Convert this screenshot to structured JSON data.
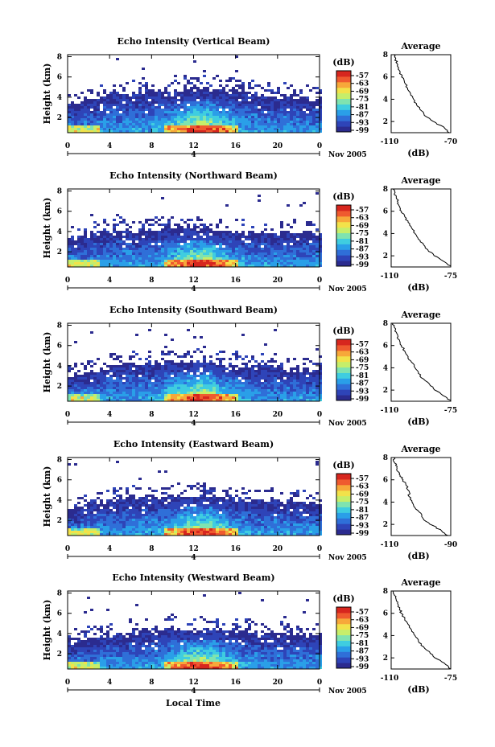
{
  "figure": {
    "xlabel": "Local Time",
    "colorbar_unit": "(dB)",
    "colorbar_ticks": [
      "-57",
      "-63",
      "-69",
      "-75",
      "-81",
      "-87",
      "-93",
      "-99"
    ],
    "date_label": "Nov 2005",
    "day_label": "4",
    "avg_title": "Average",
    "avg_xlabel": "(dB)",
    "colormap": [
      "#2b2b8f",
      "#2e44b8",
      "#2f6fd8",
      "#2a9fe8",
      "#3fcde0",
      "#7fe3b0",
      "#c6ee6a",
      "#f2e24a",
      "#f7a83a",
      "#ef5a2f",
      "#d7261e"
    ]
  },
  "chart_data": [
    {
      "type": "heatmap",
      "title": "Echo Intensity (Vertical Beam)",
      "ylabel": "Height (km)",
      "x_ticks": [
        "0",
        "4",
        "8",
        "12",
        "16",
        "20",
        "0"
      ],
      "y_ticks": [
        "2",
        "4",
        "6",
        "8"
      ],
      "xlim": [
        0,
        24
      ],
      "ylim": [
        0.5,
        8.2
      ],
      "echo_top_km": [
        3.3,
        3.4,
        3.6,
        4.2,
        4.6,
        4.5,
        4.4,
        4.5,
        4.6,
        4.7,
        4.7,
        4.8,
        4.9,
        4.8,
        4.7,
        4.6,
        4.5,
        4.4,
        4.2,
        4.1,
        4.0,
        3.9,
        3.9,
        3.8,
        3.7
      ],
      "profile": {
        "type": "line",
        "xlim": [
          -110,
          -70
        ],
        "x_ticks": [
          "-110",
          "-70"
        ],
        "ylim": [
          1,
          8
        ],
        "y_ticks": [
          "2",
          "4",
          "6",
          "8"
        ],
        "x": [
          -71,
          -74,
          -80,
          -86,
          -90,
          -93,
          -95,
          -97,
          -99,
          -101,
          -103,
          -104,
          -105,
          -106,
          -107,
          -108
        ],
        "y": [
          1.0,
          1.4,
          1.9,
          2.4,
          3.0,
          3.5,
          4.0,
          4.5,
          5.0,
          5.5,
          6.0,
          6.4,
          6.8,
          7.2,
          7.6,
          8.0
        ]
      }
    },
    {
      "type": "heatmap",
      "title": "Echo Intensity (Northward Beam)",
      "ylabel": "Height (km)",
      "x_ticks": [
        "0",
        "4",
        "8",
        "12",
        "16",
        "20",
        "0"
      ],
      "y_ticks": [
        "2",
        "4",
        "6",
        "8"
      ],
      "xlim": [
        0,
        24
      ],
      "ylim": [
        0.5,
        8.2
      ],
      "echo_top_km": [
        3.2,
        3.4,
        3.6,
        3.9,
        4.1,
        4.0,
        3.9,
        4.1,
        4.3,
        4.2,
        4.1,
        4.0,
        4.2,
        4.1,
        4.0,
        3.9,
        3.9,
        3.8,
        3.8,
        3.8,
        3.9,
        3.8,
        3.8,
        3.9,
        3.8
      ],
      "profile": {
        "type": "line",
        "xlim": [
          -110,
          -75
        ],
        "x_ticks": [
          "-110",
          "-75"
        ],
        "ylim": [
          1,
          8
        ],
        "y_ticks": [
          "2",
          "4",
          "6",
          "8"
        ],
        "x": [
          -75,
          -78,
          -83,
          -88,
          -91,
          -94,
          -96,
          -98,
          -100,
          -102,
          -104,
          -105,
          -106,
          -107,
          -108,
          -109
        ],
        "y": [
          1.0,
          1.4,
          1.9,
          2.4,
          3.0,
          3.5,
          4.0,
          4.5,
          5.0,
          5.5,
          6.0,
          6.4,
          6.8,
          7.2,
          7.6,
          8.0
        ]
      }
    },
    {
      "type": "heatmap",
      "title": "Echo Intensity (Southward Beam)",
      "ylabel": "Height (km)",
      "x_ticks": [
        "0",
        "4",
        "8",
        "12",
        "16",
        "20",
        "0"
      ],
      "y_ticks": [
        "2",
        "4",
        "6",
        "8"
      ],
      "xlim": [
        0,
        24
      ],
      "ylim": [
        0.5,
        8.2
      ],
      "echo_top_km": [
        3.0,
        3.2,
        3.5,
        3.9,
        4.2,
        4.3,
        4.1,
        4.2,
        4.4,
        4.5,
        4.3,
        4.2,
        4.4,
        4.3,
        4.1,
        4.0,
        3.9,
        3.8,
        3.9,
        3.8,
        3.7,
        3.7,
        3.6,
        3.6,
        3.5
      ],
      "profile": {
        "type": "line",
        "xlim": [
          -110,
          -75
        ],
        "x_ticks": [
          "-110",
          "-75"
        ],
        "ylim": [
          1,
          8
        ],
        "y_ticks": [
          "2",
          "4",
          "6",
          "8"
        ],
        "x": [
          -75,
          -78,
          -83,
          -87,
          -91,
          -94,
          -96,
          -98,
          -100,
          -102,
          -104,
          -105,
          -106,
          -107,
          -108,
          -109
        ],
        "y": [
          1.0,
          1.4,
          1.9,
          2.4,
          3.0,
          3.5,
          4.0,
          4.5,
          5.0,
          5.5,
          6.0,
          6.4,
          6.8,
          7.2,
          7.6,
          8.0
        ]
      }
    },
    {
      "type": "heatmap",
      "title": "Echo Intensity (Eastward Beam)",
      "ylabel": "Height (km)",
      "x_ticks": [
        "0",
        "4",
        "8",
        "12",
        "16",
        "20",
        "0"
      ],
      "y_ticks": [
        "2",
        "4",
        "6",
        "8"
      ],
      "xlim": [
        0,
        24
      ],
      "ylim": [
        0.5,
        8.2
      ],
      "echo_top_km": [
        3.0,
        3.2,
        3.5,
        3.8,
        4.0,
        4.1,
        4.2,
        4.3,
        4.4,
        4.4,
        4.3,
        4.3,
        4.4,
        4.3,
        4.2,
        4.1,
        4.0,
        3.9,
        3.9,
        3.9,
        3.8,
        3.8,
        3.7,
        3.7,
        3.7
      ],
      "profile": {
        "type": "line",
        "xlim": [
          -110,
          -90
        ],
        "x_ticks": [
          "-110",
          "-90"
        ],
        "ylim": [
          1,
          8
        ],
        "y_ticks": [
          "2",
          "4",
          "6",
          "8"
        ],
        "x": [
          -91,
          -93,
          -96,
          -99,
          -100,
          -102,
          -103,
          -104,
          -104,
          -105,
          -106,
          -107,
          -108,
          -108,
          -109,
          -109
        ],
        "y": [
          1.0,
          1.4,
          1.9,
          2.4,
          3.0,
          3.5,
          4.0,
          4.5,
          5.0,
          5.5,
          6.0,
          6.4,
          6.8,
          7.2,
          7.6,
          8.0
        ]
      }
    },
    {
      "type": "heatmap",
      "title": "Echo Intensity (Westward Beam)",
      "ylabel": "Height (km)",
      "x_ticks": [
        "0",
        "4",
        "8",
        "12",
        "16",
        "20",
        "0"
      ],
      "y_ticks": [
        "2",
        "4",
        "6",
        "8"
      ],
      "xlim": [
        0,
        24
      ],
      "ylim": [
        0.5,
        8.2
      ],
      "echo_top_km": [
        3.1,
        3.3,
        3.5,
        3.7,
        3.9,
        4.0,
        4.1,
        4.3,
        4.4,
        4.5,
        4.4,
        4.3,
        4.4,
        4.4,
        4.3,
        4.2,
        4.1,
        4.0,
        4.0,
        3.9,
        3.9,
        3.8,
        3.8,
        3.9,
        3.8
      ],
      "profile": {
        "type": "line",
        "xlim": [
          -110,
          -75
        ],
        "x_ticks": [
          "-110",
          "-75"
        ],
        "ylim": [
          1,
          8
        ],
        "y_ticks": [
          "2",
          "4",
          "6",
          "8"
        ],
        "x": [
          -75,
          -78,
          -83,
          -87,
          -91,
          -94,
          -96,
          -98,
          -100,
          -102,
          -104,
          -105,
          -106,
          -107,
          -108,
          -109
        ],
        "y": [
          1.0,
          1.4,
          1.9,
          2.4,
          3.0,
          3.5,
          4.0,
          4.5,
          5.0,
          5.5,
          6.0,
          6.4,
          6.8,
          7.2,
          7.6,
          8.0
        ]
      }
    }
  ]
}
